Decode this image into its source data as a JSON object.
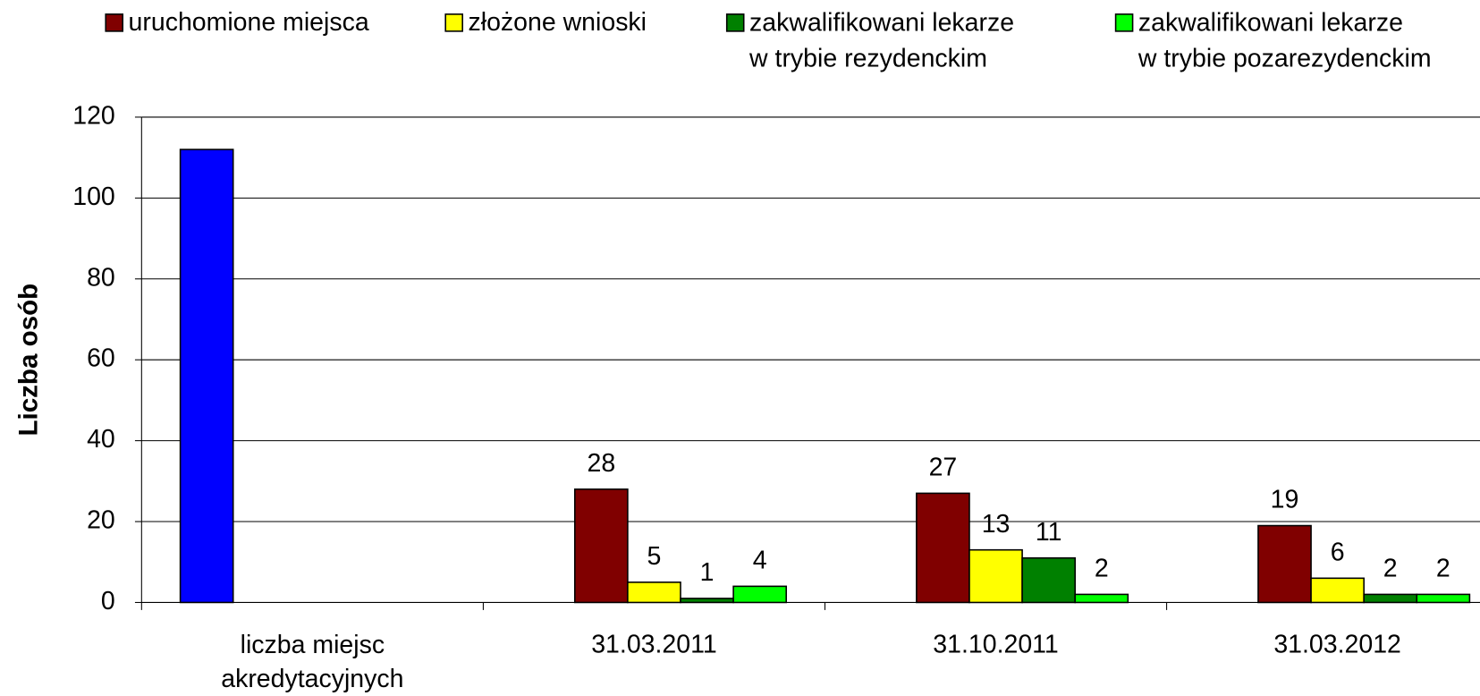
{
  "chart_data": {
    "type": "bar",
    "y_label": "Liczba osób",
    "categories": [
      "liczba miejsc\nakredytacyjnych",
      "31.03.2011",
      "31.10.2011",
      "31.03.2012"
    ],
    "series": [
      {
        "color": "#0000ff",
        "values": [
          112,
          null,
          null,
          null
        ],
        "data_labels": false
      },
      {
        "name": "uruchomione miejsca",
        "color": "#800000",
        "values": [
          null,
          28,
          27,
          19
        ],
        "data_labels": true
      },
      {
        "name": "złożone wnioski",
        "color": "#ffff00",
        "values": [
          null,
          5,
          13,
          6
        ],
        "data_labels": true
      },
      {
        "name": "zakwalifikowani lekarze\nw trybie rezydenckim",
        "color": "#008000",
        "values": [
          null,
          1,
          11,
          2
        ],
        "data_labels": true
      },
      {
        "name": "zakwalifikowani lekarze\nw trybie pozarezydenckim",
        "color": "#00ff00",
        "values": [
          null,
          4,
          2,
          2
        ],
        "data_labels": true
      }
    ],
    "ylim": [
      0,
      120
    ],
    "yticks": [
      0,
      20,
      40,
      60,
      80,
      100,
      120
    ],
    "grid": true,
    "legend": "top"
  }
}
